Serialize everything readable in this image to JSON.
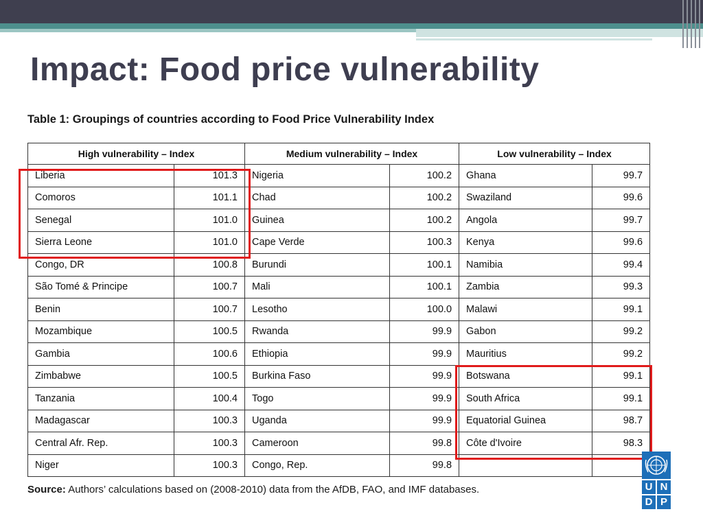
{
  "slide": {
    "title": "Impact: Food price vulnerability"
  },
  "table": {
    "caption": "Table 1: Groupings of countries according to Food Price Vulnerability Index",
    "headers": [
      "High vulnerability – Index",
      "Medium vulnerability – Index",
      "Low vulnerability – Index"
    ],
    "rows": [
      [
        [
          "Liberia",
          "101.3"
        ],
        [
          "Nigeria",
          "100.2"
        ],
        [
          "Ghana",
          "99.7"
        ]
      ],
      [
        [
          "Comoros",
          "101.1"
        ],
        [
          "Chad",
          "100.2"
        ],
        [
          "Swaziland",
          "99.6"
        ]
      ],
      [
        [
          "Senegal",
          "101.0"
        ],
        [
          "Guinea",
          "100.2"
        ],
        [
          "Angola",
          "99.7"
        ]
      ],
      [
        [
          "Sierra Leone",
          "101.0"
        ],
        [
          "Cape Verde",
          "100.3"
        ],
        [
          "Kenya",
          "99.6"
        ]
      ],
      [
        [
          "Congo, DR",
          "100.8"
        ],
        [
          "Burundi",
          "100.1"
        ],
        [
          "Namibia",
          "99.4"
        ]
      ],
      [
        [
          "São Tomé & Principe",
          "100.7"
        ],
        [
          "Mali",
          "100.1"
        ],
        [
          "Zambia",
          "99.3"
        ]
      ],
      [
        [
          "Benin",
          "100.7"
        ],
        [
          "Lesotho",
          "100.0"
        ],
        [
          "Malawi",
          "99.1"
        ]
      ],
      [
        [
          "Mozambique",
          "100.5"
        ],
        [
          "Rwanda",
          "99.9"
        ],
        [
          "Gabon",
          "99.2"
        ]
      ],
      [
        [
          "Gambia",
          "100.6"
        ],
        [
          "Ethiopia",
          "99.9"
        ],
        [
          "Mauritius",
          "99.2"
        ]
      ],
      [
        [
          "Zimbabwe",
          "100.5"
        ],
        [
          "Burkina Faso",
          "99.9"
        ],
        [
          "Botswana",
          "99.1"
        ]
      ],
      [
        [
          "Tanzania",
          "100.4"
        ],
        [
          "Togo",
          "99.9"
        ],
        [
          "South Africa",
          "99.1"
        ]
      ],
      [
        [
          "Madagascar",
          "100.3"
        ],
        [
          "Uganda",
          "99.9"
        ],
        [
          "Equatorial Guinea",
          "98.7"
        ]
      ],
      [
        [
          "Central Afr. Rep.",
          "100.3"
        ],
        [
          "Cameroon",
          "99.8"
        ],
        [
          "Côte d'Ivoire",
          "98.3"
        ]
      ],
      [
        [
          "Niger",
          "100.3"
        ],
        [
          "Congo, Rep.",
          "99.8"
        ],
        [
          "",
          ""
        ]
      ]
    ],
    "source_label": "Source:",
    "source_text": " Authors’ calculations based on (2008-2010) data from the AfDB, FAO, and IMF databases."
  },
  "logo": {
    "letters": [
      "U",
      "N",
      "D",
      "P"
    ]
  },
  "colors": {
    "highlight": "#e01b1b",
    "topbar": "#3f3f4f",
    "teal": "#4d8f8d",
    "title": "#3e3e50",
    "undp_blue": "#1d6fb8"
  }
}
